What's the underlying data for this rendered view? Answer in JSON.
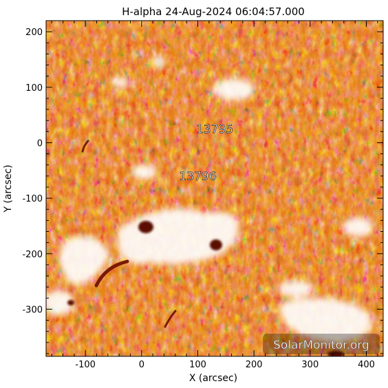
{
  "chart_data": {
    "type": "heatmap",
    "title": "H-alpha 24-Aug-2024 06:04:57.000",
    "xlabel": "X (arcsec)",
    "ylabel": "Y (arcsec)",
    "xlim": [
      -170,
      430
    ],
    "ylim": [
      -385,
      220
    ],
    "x_ticks": [
      -100,
      0,
      100,
      200,
      300,
      400
    ],
    "y_ticks": [
      200,
      100,
      0,
      -100,
      -200,
      -300
    ],
    "colormap": [
      "#000000",
      "#7a1c08",
      "#e4620f",
      "#f4a35c",
      "#ffffff"
    ],
    "regions": [
      {
        "label": "13795",
        "x": 130,
        "y": 25
      },
      {
        "label": "13796",
        "x": 100,
        "y": -60
      }
    ],
    "watermark": "SolarMonitor.org"
  }
}
